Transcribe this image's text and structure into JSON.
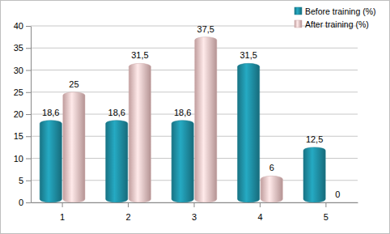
{
  "chart_data": {
    "type": "bar",
    "categories": [
      "1",
      "2",
      "3",
      "4",
      "5"
    ],
    "series": [
      {
        "name": "Before training (%)",
        "color": "#1f8ea3",
        "values": [
          18.6,
          18.6,
          18.6,
          31.5,
          12.5
        ],
        "value_labels": [
          "18,6",
          "18,6",
          "18,6",
          "31,5",
          "12,5"
        ]
      },
      {
        "name": "After training (%)",
        "color": "#efc4c4",
        "values": [
          25,
          31.5,
          37.5,
          6,
          0
        ],
        "value_labels": [
          "25",
          "31,5",
          "37,5",
          "6",
          "0"
        ]
      }
    ],
    "ylim": [
      0,
      40
    ],
    "yticks": [
      0,
      5,
      10,
      15,
      20,
      25,
      30,
      35,
      40
    ],
    "grid": true,
    "legend": "top-right",
    "data_labels": true
  }
}
